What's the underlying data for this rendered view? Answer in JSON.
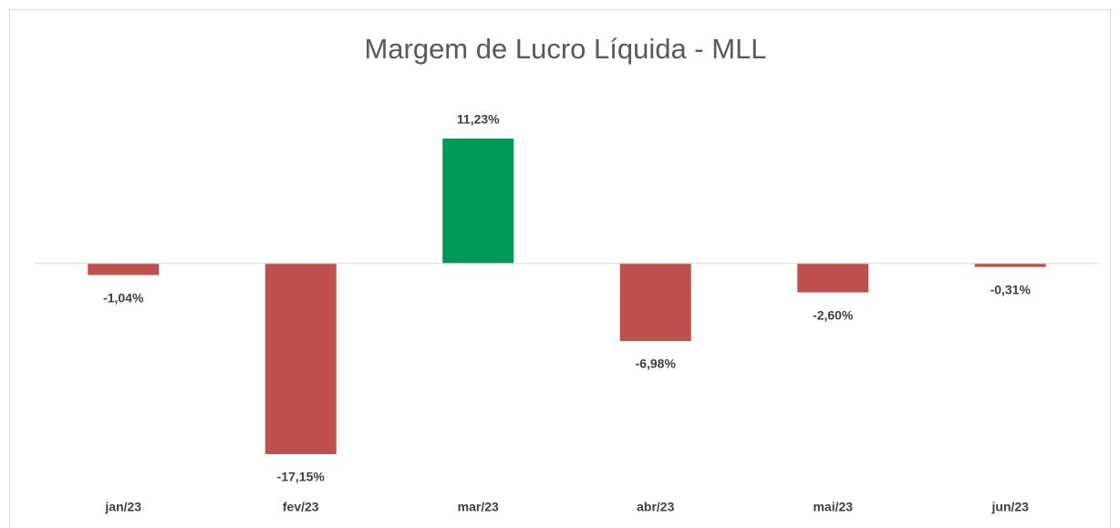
{
  "chart_data": {
    "type": "bar",
    "title": "Margem de Lucro Líquida - MLL",
    "categories": [
      "jan/23",
      "fev/23",
      "mar/23",
      "abr/23",
      "mai/23",
      "jun/23"
    ],
    "values": [
      -1.04,
      -17.15,
      11.23,
      -6.98,
      -2.6,
      -0.31
    ],
    "value_labels": [
      "-1,04%",
      "-17,15%",
      "11,23%",
      "-6,98%",
      "-2,60%",
      "-0,31%"
    ],
    "colors": [
      "#c0504d",
      "#c0504d",
      "#00995a",
      "#c0504d",
      "#c0504d",
      "#c0504d"
    ]
  }
}
